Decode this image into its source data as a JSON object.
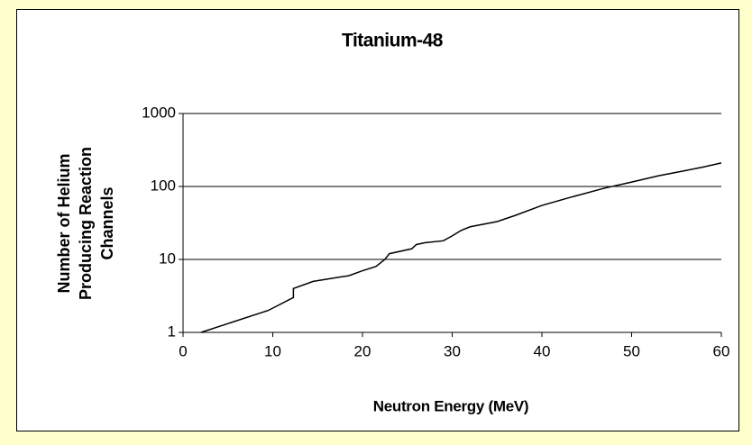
{
  "chart_data": {
    "type": "line",
    "title": "Titanium-48",
    "x_label": "Neutron Energy (MeV)",
    "y_label": [
      "Number of Helium",
      "Producing Reaction",
      "Channels"
    ],
    "series": [
      {
        "name": "Titanium-48",
        "color": "#000000",
        "x": [
          2,
          9.5,
          12.3,
          12.3,
          14.5,
          18.5,
          20,
          21.5,
          22.5,
          23,
          25.5,
          26,
          27,
          29,
          30,
          31,
          32,
          35,
          37,
          40,
          43,
          47,
          50,
          53,
          56,
          58,
          60
        ],
        "values": [
          1,
          2,
          3,
          4,
          5,
          6,
          7,
          8,
          10,
          12,
          14,
          16,
          17,
          18,
          21,
          25,
          28,
          33,
          40,
          55,
          70,
          95,
          115,
          140,
          165,
          185,
          210
        ]
      }
    ],
    "xlim": [
      0,
      60
    ],
    "xticks": [
      0,
      10,
      20,
      30,
      40,
      50,
      60
    ],
    "ylim": [
      1,
      1000
    ],
    "yticks": [
      1,
      10,
      100,
      1000
    ],
    "log_y": true,
    "grid": true
  }
}
